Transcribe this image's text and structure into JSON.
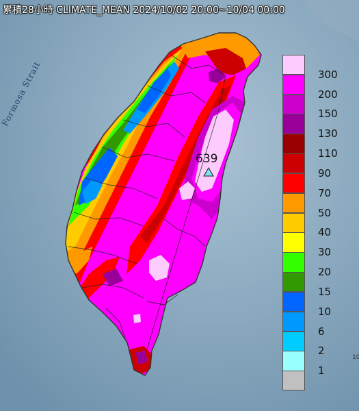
{
  "title": "累積28小時 CLIMATE_MEAN 2024/10/02 20:00~10/04 00:00",
  "strait_label": "Formosa Strait",
  "max_station": {
    "value": "639",
    "marker": "triangle-marker"
  },
  "edge_text": "10",
  "legend": {
    "labels": [
      "300",
      "200",
      "150",
      "130",
      "110",
      "90",
      "70",
      "50",
      "40",
      "30",
      "20",
      "15",
      "10",
      "6",
      "2",
      "1"
    ],
    "colors": [
      "#fecbfe",
      "#ff00ff",
      "#cc00cc",
      "#990099",
      "#990000",
      "#cc0000",
      "#ff0000",
      "#ff9900",
      "#ffcc00",
      "#ffff00",
      "#33ff00",
      "#339900",
      "#0066ff",
      "#0099ff",
      "#00ccff",
      "#99ffff",
      "#c0c0c0"
    ]
  },
  "colors": {
    "sea": "#7f9fb5",
    "outline": "#333333"
  }
}
